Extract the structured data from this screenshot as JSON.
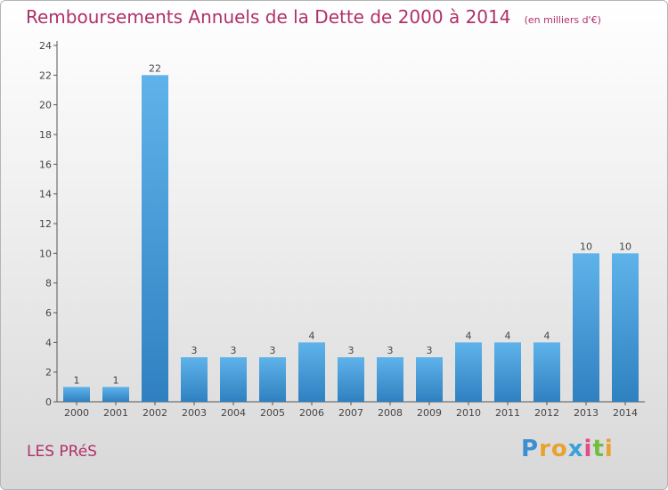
{
  "commune": "LES PRéS",
  "logo": {
    "letters": [
      "P",
      "r",
      "o",
      "x",
      "i",
      "t",
      "i"
    ],
    "colors": [
      "#3b8fd1",
      "#e8a230",
      "#e8a230",
      "#3aa1d9",
      "#e34b8a",
      "#6fbf3d",
      "#e8a230"
    ]
  },
  "chart_data": {
    "type": "bar",
    "title": "Remboursements Annuels de la Dette de 2000 à 2014",
    "unit_label": "(en milliers d'€)",
    "categories": [
      "2000",
      "2001",
      "2002",
      "2003",
      "2004",
      "2005",
      "2006",
      "2007",
      "2008",
      "2009",
      "2010",
      "2011",
      "2012",
      "2013",
      "2014"
    ],
    "values": [
      1,
      1,
      22,
      3,
      3,
      3,
      4,
      3,
      3,
      3,
      4,
      4,
      4,
      10,
      10
    ],
    "ylim": [
      0,
      24
    ],
    "yticks": [
      0,
      2,
      4,
      6,
      8,
      10,
      12,
      14,
      16,
      18,
      20,
      22,
      24
    ],
    "grid": false,
    "bar_color": "#4aa3e0"
  }
}
